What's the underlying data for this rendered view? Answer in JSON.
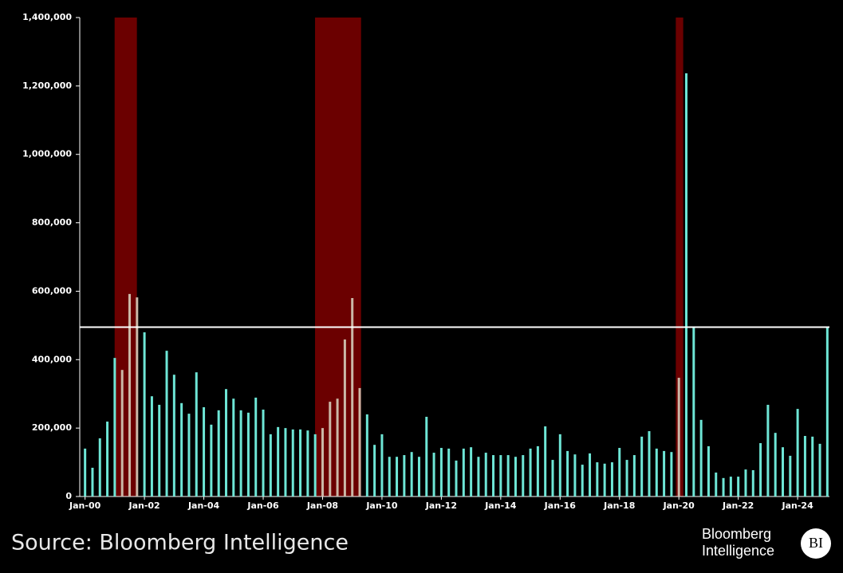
{
  "chart_data": {
    "type": "bar",
    "categories": [
      "Jan-00",
      null,
      null,
      null,
      null,
      null,
      null,
      null,
      "Jan-02",
      null,
      null,
      null,
      null,
      null,
      null,
      null,
      "Jan-04",
      null,
      null,
      null,
      null,
      null,
      null,
      null,
      "Jan-06",
      null,
      null,
      null,
      null,
      null,
      null,
      null,
      "Jan-08",
      null,
      null,
      null,
      null,
      null,
      null,
      null,
      "Jan-10",
      null,
      null,
      null,
      null,
      null,
      null,
      null,
      "Jan-12",
      null,
      null,
      null,
      null,
      null,
      null,
      null,
      "Jan-14",
      null,
      null,
      null,
      null,
      null,
      null,
      null,
      "Jan-16",
      null,
      null,
      null,
      null,
      null,
      null,
      null,
      "Jan-18",
      null,
      null,
      null,
      null,
      null,
      null,
      null,
      "Jan-20",
      null,
      null,
      null,
      null,
      null,
      null,
      null,
      "Jan-22",
      null,
      null,
      null,
      null,
      null,
      null,
      null,
      "Jan-24",
      null,
      null,
      null,
      null
    ],
    "values": [
      140000,
      84000,
      170000,
      219000,
      405000,
      370000,
      592000,
      582000,
      480000,
      293000,
      268000,
      426000,
      356000,
      273000,
      242000,
      363000,
      261000,
      210000,
      252000,
      314000,
      286000,
      252000,
      245000,
      289000,
      254000,
      182000,
      203000,
      200000,
      196000,
      196000,
      193000,
      182000,
      200000,
      277000,
      286000,
      459000,
      580000,
      317000,
      240000,
      151000,
      182000,
      116000,
      116000,
      121000,
      130000,
      116000,
      233000,
      128000,
      142000,
      140000,
      105000,
      140000,
      144000,
      116000,
      128000,
      121000,
      121000,
      121000,
      116000,
      121000,
      140000,
      147000,
      205000,
      107000,
      182000,
      133000,
      123000,
      93000,
      126000,
      100000,
      96000,
      100000,
      142000,
      107000,
      121000,
      175000,
      191000,
      140000,
      133000,
      130000,
      347000,
      1237000,
      496000,
      224000,
      147000,
      70000,
      54000,
      58000,
      58000,
      79000,
      77000,
      156000,
      268000,
      186000,
      144000,
      119000,
      256000,
      177000,
      175000,
      154000,
      495000
    ],
    "color": "#6ee6d6",
    "recession_bar_color": "#cbb9a8",
    "recessions": [
      {
        "start": 4.7,
        "end": 7.7
      },
      {
        "start": 31.7,
        "end": 37.9
      },
      {
        "start": 80.3,
        "end": 81.3
      }
    ],
    "recession_color": "#6b0000",
    "reference_line": 495000,
    "reference_line_color": "#ffffff",
    "ylim": [
      0,
      1400000
    ],
    "yticks": [
      0,
      {
        "value": 200000,
        "label": "200,000"
      },
      {
        "value": 400000,
        "label": "400,000"
      },
      {
        "value": 600000,
        "label": "600,000"
      },
      {
        "value": 800000,
        "label": "800,000"
      },
      {
        "value": 1000000,
        "label": "1,000,000"
      },
      {
        "value": 1200000,
        "label": "1,200,000"
      },
      {
        "value": 1400000,
        "label": "1,400,000"
      }
    ],
    "grid": false,
    "source": "Source: Bloomberg Intelligence",
    "logo": {
      "line1": "Bloomberg",
      "line2": "Intelligence",
      "badge": "BI"
    }
  }
}
